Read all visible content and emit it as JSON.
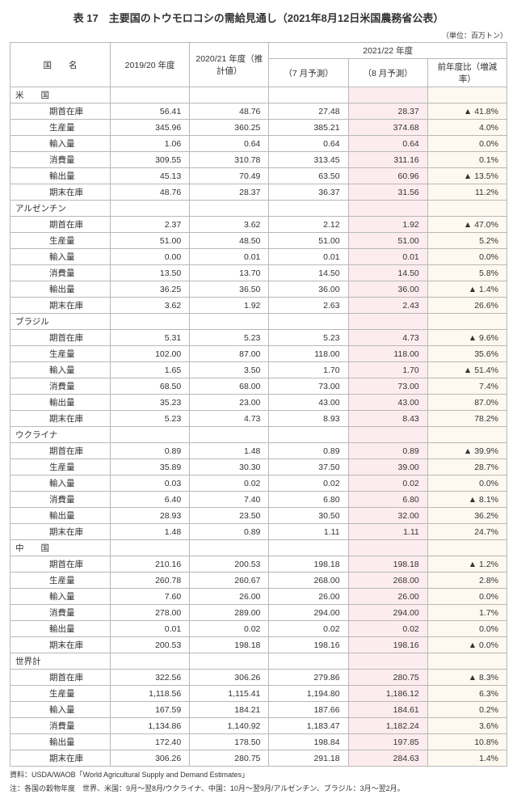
{
  "title": "表 17　主要国のトウモロコシの需給見通し（2021年8月12日米国農務省公表）",
  "unit": "（単位：百万トン）",
  "headers": {
    "country": "国　　名",
    "y2019": "2019/20 年度",
    "y2020": "2020/21 年度（推計値）",
    "y2021": "2021/22 年度",
    "jul": "（7 月予測）",
    "aug": "（8 月予測）",
    "pct": "前年度比（増減率）"
  },
  "metrics": [
    "期首在庫",
    "生産量",
    "輸入量",
    "消費量",
    "輸出量",
    "期末在庫"
  ],
  "countries": [
    {
      "name": "米　　国",
      "rows": [
        [
          "56.41",
          "48.76",
          "27.48",
          "28.37",
          "▲ 41.8%"
        ],
        [
          "345.96",
          "360.25",
          "385.21",
          "374.68",
          "4.0%"
        ],
        [
          "1.06",
          "0.64",
          "0.64",
          "0.64",
          "0.0%"
        ],
        [
          "309.55",
          "310.78",
          "313.45",
          "311.16",
          "0.1%"
        ],
        [
          "45.13",
          "70.49",
          "63.50",
          "60.96",
          "▲ 13.5%"
        ],
        [
          "48.76",
          "28.37",
          "36.37",
          "31.56",
          "11.2%"
        ]
      ]
    },
    {
      "name": "アルゼンチン",
      "rows": [
        [
          "2.37",
          "3.62",
          "2.12",
          "1.92",
          "▲ 47.0%"
        ],
        [
          "51.00",
          "48.50",
          "51.00",
          "51.00",
          "5.2%"
        ],
        [
          "0.00",
          "0.01",
          "0.01",
          "0.01",
          "0.0%"
        ],
        [
          "13.50",
          "13.70",
          "14.50",
          "14.50",
          "5.8%"
        ],
        [
          "36.25",
          "36.50",
          "36.00",
          "36.00",
          "▲ 1.4%"
        ],
        [
          "3.62",
          "1.92",
          "2.63",
          "2.43",
          "26.6%"
        ]
      ]
    },
    {
      "name": "ブラジル",
      "rows": [
        [
          "5.31",
          "5.23",
          "5.23",
          "4.73",
          "▲ 9.6%"
        ],
        [
          "102.00",
          "87.00",
          "118.00",
          "118.00",
          "35.6%"
        ],
        [
          "1.65",
          "3.50",
          "1.70",
          "1.70",
          "▲ 51.4%"
        ],
        [
          "68.50",
          "68.00",
          "73.00",
          "73.00",
          "7.4%"
        ],
        [
          "35.23",
          "23.00",
          "43.00",
          "43.00",
          "87.0%"
        ],
        [
          "5.23",
          "4.73",
          "8.93",
          "8.43",
          "78.2%"
        ]
      ]
    },
    {
      "name": "ウクライナ",
      "rows": [
        [
          "0.89",
          "1.48",
          "0.89",
          "0.89",
          "▲ 39.9%"
        ],
        [
          "35.89",
          "30.30",
          "37.50",
          "39.00",
          "28.7%"
        ],
        [
          "0.03",
          "0.02",
          "0.02",
          "0.02",
          "0.0%"
        ],
        [
          "6.40",
          "7.40",
          "6.80",
          "6.80",
          "▲ 8.1%"
        ],
        [
          "28.93",
          "23.50",
          "30.50",
          "32.00",
          "36.2%"
        ],
        [
          "1.48",
          "0.89",
          "1.11",
          "1.11",
          "24.7%"
        ]
      ]
    },
    {
      "name": "中　　国",
      "rows": [
        [
          "210.16",
          "200.53",
          "198.18",
          "198.18",
          "▲ 1.2%"
        ],
        [
          "260.78",
          "260.67",
          "268.00",
          "268.00",
          "2.8%"
        ],
        [
          "7.60",
          "26.00",
          "26.00",
          "26.00",
          "0.0%"
        ],
        [
          "278.00",
          "289.00",
          "294.00",
          "294.00",
          "1.7%"
        ],
        [
          "0.01",
          "0.02",
          "0.02",
          "0.02",
          "0.0%"
        ],
        [
          "200.53",
          "198.18",
          "198.16",
          "198.16",
          "▲ 0.0%"
        ]
      ]
    },
    {
      "name": "世界計",
      "rows": [
        [
          "322.56",
          "306.26",
          "279.86",
          "280.75",
          "▲ 8.3%"
        ],
        [
          "1,118.56",
          "1,115.41",
          "1,194.80",
          "1,186.12",
          "6.3%"
        ],
        [
          "167.59",
          "184.21",
          "187.66",
          "184.61",
          "0.2%"
        ],
        [
          "1,134.86",
          "1,140.92",
          "1,183.47",
          "1,182.24",
          "3.6%"
        ],
        [
          "172.40",
          "178.50",
          "198.84",
          "197.85",
          "10.8%"
        ],
        [
          "306.26",
          "280.75",
          "291.18",
          "284.63",
          "1.4%"
        ]
      ]
    }
  ],
  "footer1": "資料：USDA/WAOB「World Agricultural Supply and Demand Estimates」",
  "footer2": "注：各国の穀物年度　世界、米国：9月〜翌8月/ウクライナ、中国：10月〜翌9月/アルゼンチン、ブラジル：3月〜翌2月。",
  "colors": {
    "border": "#b8b8b8",
    "hl_aug": "#fdecef",
    "hl_pct": "#fef9f0",
    "text": "#333333",
    "bg": "#ffffff"
  }
}
